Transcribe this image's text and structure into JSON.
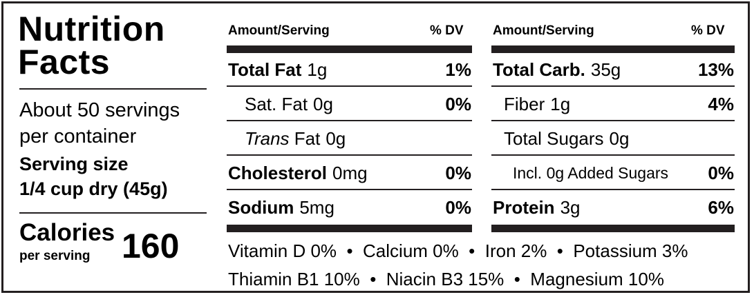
{
  "title_line1": "Nutrition",
  "title_line2": "Facts",
  "servings_line1": "About 50 servings",
  "servings_line2": "per container",
  "serving_size_label": "Serving size",
  "serving_size_value": "1/4 cup dry (45g)",
  "calories_label": "Calories",
  "calories_sub": "per serving",
  "calories_value": "160",
  "left_table": {
    "header_amount": "Amount/Serving",
    "header_dv": "% DV",
    "rows": [
      {
        "name": "Total Fat",
        "amount": "1g",
        "dv": "1%"
      },
      {
        "name": "Sat. Fat",
        "amount": "0g",
        "dv": "0%"
      },
      {
        "name": "Trans",
        "name_rest": "Fat",
        "amount": "0g",
        "dv": ""
      },
      {
        "name": "Cholesterol",
        "amount": "0mg",
        "dv": "0%"
      },
      {
        "name": "Sodium",
        "amount": "5mg",
        "dv": "0%"
      }
    ]
  },
  "right_table": {
    "header_amount": "Amount/Serving",
    "header_dv": "% DV",
    "rows": [
      {
        "name": "Total Carb.",
        "amount": "35g",
        "dv": "13%"
      },
      {
        "name": "Fiber",
        "amount": "1g",
        "dv": "4%"
      },
      {
        "name": "Total Sugars",
        "amount": "0g",
        "dv": ""
      },
      {
        "name": "Incl. 0g Added Sugars",
        "amount": "",
        "dv": "0%"
      },
      {
        "name": "Protein",
        "amount": "3g",
        "dv": "6%"
      }
    ]
  },
  "vitamins_line1": "Vitamin D 0%  •  Calcium 0%  •  Iron 2%  •  Potassium 3%",
  "vitamins_line2": "Thiamin B1 10%  •  Niacin B3 15%  •  Magnesium 10%"
}
